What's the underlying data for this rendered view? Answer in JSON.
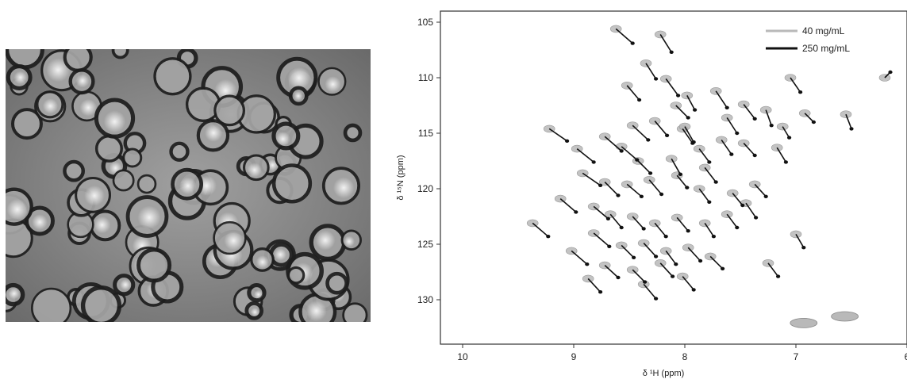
{
  "micrograph": {
    "colors": {
      "background": "#8e8e8e",
      "droplet_rim": "#1e1e1e",
      "droplet_core": "#a4a4a4",
      "bright_spot": "#f2f2f2"
    }
  },
  "chart_data": {
    "type": "scatter",
    "title": "",
    "xlabel": "δ ¹H (ppm)",
    "ylabel": "δ ¹⁵N (ppm)",
    "xlim": [
      10.2,
      6.0
    ],
    "ylim": [
      134,
      104
    ],
    "x_reversed": true,
    "y_reversed": true,
    "x_ticks": [
      10,
      9,
      8,
      7,
      6
    ],
    "y_ticks": [
      105,
      110,
      115,
      120,
      125,
      130
    ],
    "grid": false,
    "legend_position": "top-right",
    "series": [
      {
        "name": "40 mg/mL",
        "color": "#b9b9b9",
        "points": [
          [
            8.62,
            105.6
          ],
          [
            8.22,
            106.1
          ],
          [
            8.35,
            108.7
          ],
          [
            8.52,
            110.7
          ],
          [
            8.17,
            110.1
          ],
          [
            7.98,
            111.6
          ],
          [
            8.08,
            112.5
          ],
          [
            7.72,
            111.2
          ],
          [
            7.47,
            112.4
          ],
          [
            7.27,
            112.9
          ],
          [
            6.92,
            113.2
          ],
          [
            7.62,
            113.6
          ],
          [
            7.12,
            114.4
          ],
          [
            8.27,
            113.9
          ],
          [
            8.47,
            114.3
          ],
          [
            8.02,
            114.6
          ],
          [
            8.72,
            115.3
          ],
          [
            8.57,
            116.2
          ],
          [
            8.42,
            117.5
          ],
          [
            8.12,
            117.3
          ],
          [
            7.87,
            116.4
          ],
          [
            7.67,
            115.6
          ],
          [
            7.47,
            115.9
          ],
          [
            7.17,
            116.3
          ],
          [
            8.92,
            118.6
          ],
          [
            8.72,
            119.4
          ],
          [
            8.52,
            119.6
          ],
          [
            8.32,
            119.2
          ],
          [
            8.07,
            118.8
          ],
          [
            7.87,
            120.0
          ],
          [
            7.57,
            120.4
          ],
          [
            7.37,
            119.6
          ],
          [
            8.82,
            121.6
          ],
          [
            8.67,
            122.3
          ],
          [
            8.47,
            122.5
          ],
          [
            8.27,
            123.1
          ],
          [
            8.07,
            122.6
          ],
          [
            7.82,
            123.1
          ],
          [
            7.62,
            122.3
          ],
          [
            8.57,
            125.1
          ],
          [
            8.37,
            124.9
          ],
          [
            8.17,
            125.6
          ],
          [
            7.97,
            125.3
          ],
          [
            7.77,
            126.1
          ],
          [
            8.72,
            126.9
          ],
          [
            8.47,
            127.3
          ],
          [
            8.22,
            126.7
          ],
          [
            8.02,
            127.9
          ],
          [
            8.82,
            124.0
          ],
          [
            8.97,
            116.4
          ],
          [
            9.22,
            114.6
          ],
          [
            9.12,
            120.9
          ],
          [
            9.37,
            123.1
          ],
          [
            9.02,
            125.6
          ],
          [
            7.25,
            126.7
          ],
          [
            7.0,
            124.1
          ],
          [
            7.05,
            110.0
          ],
          [
            6.2,
            110.0
          ],
          [
            6.55,
            113.3
          ],
          [
            8.0,
            114.4
          ],
          [
            7.82,
            118.1
          ],
          [
            7.45,
            121.3
          ],
          [
            8.37,
            128.6
          ],
          [
            8.87,
            128.1
          ]
        ]
      },
      {
        "name": "250 mg/mL",
        "color": "#111111",
        "points": [
          [
            8.47,
            106.9
          ],
          [
            8.12,
            107.7
          ],
          [
            8.26,
            110.1
          ],
          [
            8.41,
            112.0
          ],
          [
            8.06,
            111.6
          ],
          [
            7.91,
            112.9
          ],
          [
            7.97,
            113.6
          ],
          [
            7.62,
            112.7
          ],
          [
            7.37,
            113.7
          ],
          [
            7.22,
            114.3
          ],
          [
            6.84,
            114.0
          ],
          [
            7.53,
            115.0
          ],
          [
            7.06,
            115.4
          ],
          [
            8.16,
            115.2
          ],
          [
            8.33,
            115.6
          ],
          [
            7.93,
            115.9
          ],
          [
            8.57,
            116.6
          ],
          [
            8.43,
            117.4
          ],
          [
            8.31,
            118.6
          ],
          [
            8.04,
            118.7
          ],
          [
            7.78,
            117.6
          ],
          [
            7.58,
            116.9
          ],
          [
            7.37,
            117.0
          ],
          [
            7.09,
            117.6
          ],
          [
            8.76,
            119.7
          ],
          [
            8.6,
            120.6
          ],
          [
            8.39,
            120.7
          ],
          [
            8.21,
            120.5
          ],
          [
            7.98,
            119.9
          ],
          [
            7.78,
            121.2
          ],
          [
            7.48,
            121.5
          ],
          [
            7.27,
            120.7
          ],
          [
            8.69,
            122.7
          ],
          [
            8.57,
            123.5
          ],
          [
            8.37,
            123.6
          ],
          [
            8.17,
            124.3
          ],
          [
            7.97,
            123.8
          ],
          [
            7.74,
            124.3
          ],
          [
            7.53,
            123.5
          ],
          [
            8.46,
            126.2
          ],
          [
            8.26,
            126.1
          ],
          [
            8.08,
            126.8
          ],
          [
            7.86,
            126.5
          ],
          [
            7.66,
            127.2
          ],
          [
            8.6,
            128.0
          ],
          [
            8.36,
            128.4
          ],
          [
            8.11,
            127.9
          ],
          [
            7.92,
            129.1
          ],
          [
            8.68,
            125.2
          ],
          [
            8.82,
            117.6
          ],
          [
            9.06,
            115.7
          ],
          [
            8.98,
            122.1
          ],
          [
            9.23,
            124.3
          ],
          [
            8.88,
            126.8
          ],
          [
            7.16,
            127.9
          ],
          [
            6.93,
            125.3
          ],
          [
            6.96,
            111.3
          ],
          [
            6.15,
            109.5
          ],
          [
            6.5,
            114.6
          ],
          [
            7.92,
            115.8
          ],
          [
            7.72,
            119.4
          ],
          [
            7.36,
            122.6
          ],
          [
            8.26,
            129.9
          ],
          [
            8.76,
            129.3
          ]
        ]
      }
    ],
    "unassigned_peaks_40": [
      [
        6.93,
        132.1
      ],
      [
        6.56,
        131.5
      ]
    ]
  }
}
